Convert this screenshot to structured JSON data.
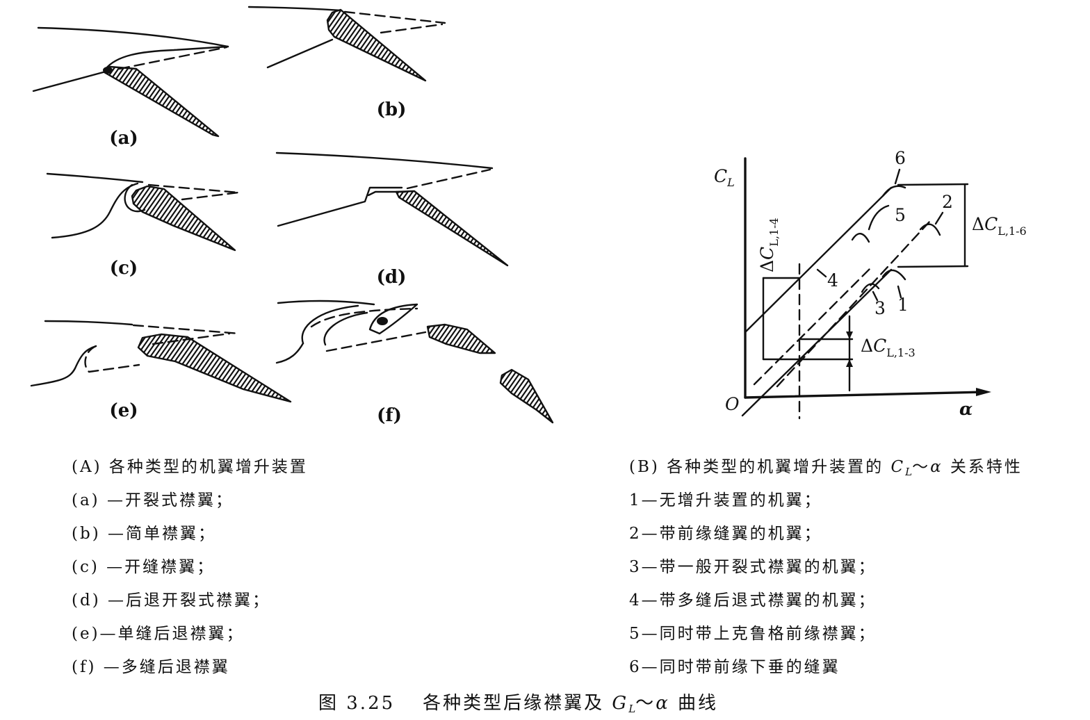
{
  "panels": {
    "a": {
      "label": "(a)"
    },
    "b": {
      "label": "(b)"
    },
    "c": {
      "label": "(c)"
    },
    "d": {
      "label": "(d)"
    },
    "e": {
      "label": "(e)"
    },
    "f": {
      "label": "(f)"
    }
  },
  "chart": {
    "y_axis": {
      "symbol": "C",
      "subscript": "L"
    },
    "origin": "O",
    "x_axis": {
      "symbol": "α"
    },
    "curve_labels": [
      "1",
      "2",
      "3",
      "4",
      "5",
      "6"
    ],
    "delta_1_6": {
      "delta": "Δ",
      "symbol": "C",
      "subscript": "L,1-6"
    },
    "delta_1_4": {
      "delta": "Δ",
      "symbol": "C",
      "subscript": "L,1-4"
    },
    "delta_1_3": {
      "delta": "Δ",
      "symbol": "C",
      "subscript": "L,1-3"
    }
  },
  "legend_a": {
    "title": "(A) 各种类型的机翼增升装置",
    "items": [
      "(a) —开裂式襟翼；",
      "(b) —简单襟翼；",
      "(c) —开缝襟翼；",
      "(d) —后退开裂式襟翼；",
      "(e)—单缝后退襟翼；",
      "(f) —多缝后退襟翼"
    ]
  },
  "legend_b": {
    "title_before": "(B) 各种类型的机翼增升装置的 ",
    "title_symbol": "C",
    "title_subscript": "L",
    "title_tilde": "～",
    "title_alpha": "α",
    "title_after": " 关系特性",
    "items": [
      "1—无增升装置的机翼；",
      "2—带前缘缝翼的机翼；",
      "3—带一般开裂式襟翼的机翼；",
      "4—带多缝后退式襟翼的机翼；",
      "5—同时带上克鲁格前缘襟翼；",
      "6—同时带前缘下垂的缝翼"
    ]
  },
  "caption": {
    "number": "图 3.25",
    "text_before": "各种类型后缘襟翼及 ",
    "symbol": "G",
    "subscript": "L",
    "tilde": "～",
    "alpha": "α",
    "text_after": " 曲线"
  }
}
